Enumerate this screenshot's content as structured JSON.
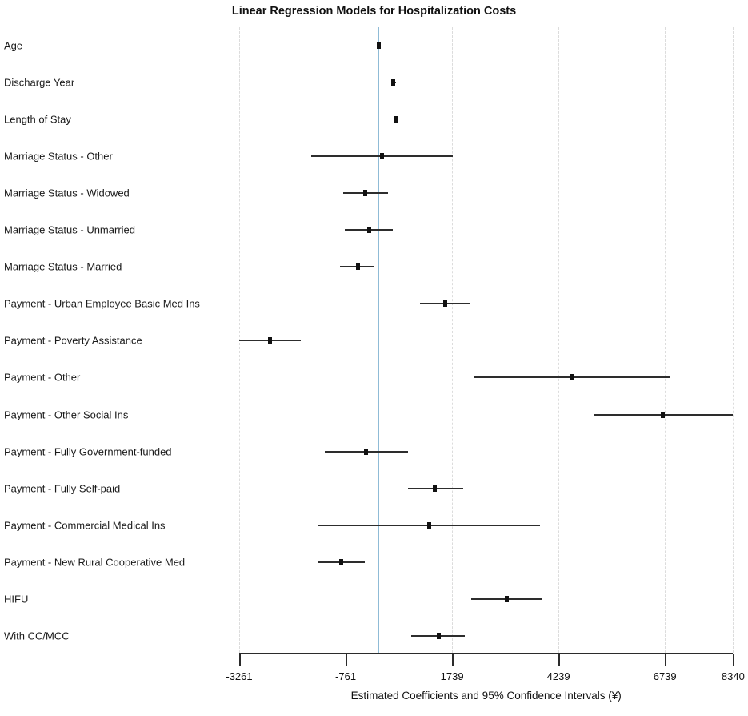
{
  "title": "Linear Regression Models for Hospitalization Costs",
  "x_axis": {
    "label": "Estimated Coefficients and 95% Confidence Intervals (¥)",
    "tick_labels": [
      "-3261",
      "-761",
      "1739",
      "4239",
      "6739",
      "8340"
    ],
    "tick_values": [
      -3261,
      -761,
      1739,
      4239,
      6739,
      8340
    ]
  },
  "colors": {
    "reference_line": "#8fbbd6",
    "ci_line": "#2d2d2d",
    "marker": "#111111",
    "gridline": "#dcdcdc",
    "axis": "#2b2b2b"
  },
  "chart_data": {
    "type": "scatter",
    "subtype": "forest-plot",
    "title": "Linear Regression Models for Hospitalization Costs",
    "xlabel": "Estimated Coefficients and 95% Confidence Intervals (¥)",
    "ylabel": "",
    "xlim": [
      -3261,
      8340
    ],
    "grid": true,
    "reference_line_x": 0,
    "categories": [
      "Age",
      "Discharge Year",
      "Length of Stay",
      "Marriage Status - Other",
      "Marriage Status - Widowed",
      "Marriage Status - Unmarried",
      "Marriage Status - Married",
      "Payment - Urban Employee Basic Med Ins",
      "Payment - Poverty Assistance",
      "Payment - Other",
      "Payment - Other Social Ins",
      "Payment - Fully Government-funded",
      "Payment - Fully Self-paid",
      "Payment - Commercial Medical Ins",
      "Payment - New Rural Cooperative Med",
      "HIFU",
      "With CC/MCC"
    ],
    "series": [
      {
        "name": "estimate",
        "values": [
          20,
          365,
          440,
          95,
          -295,
          -215,
          -480,
          1570,
          -2530,
          4545,
          6695,
          -280,
          1335,
          1195,
          -860,
          3015,
          1420
        ]
      },
      {
        "name": "ci_lower_95",
        "values": [
          5,
          300,
          395,
          -1575,
          -810,
          -785,
          -890,
          990,
          -3261,
          2255,
          5055,
          -1245,
          695,
          -1420,
          -1410,
          2180,
          770
        ]
      },
      {
        "name": "ci_upper_95",
        "values": [
          40,
          430,
          485,
          1765,
          225,
          350,
          -105,
          2150,
          -1810,
          6855,
          8340,
          695,
          1995,
          3800,
          -310,
          3845,
          2040
        ]
      }
    ]
  }
}
